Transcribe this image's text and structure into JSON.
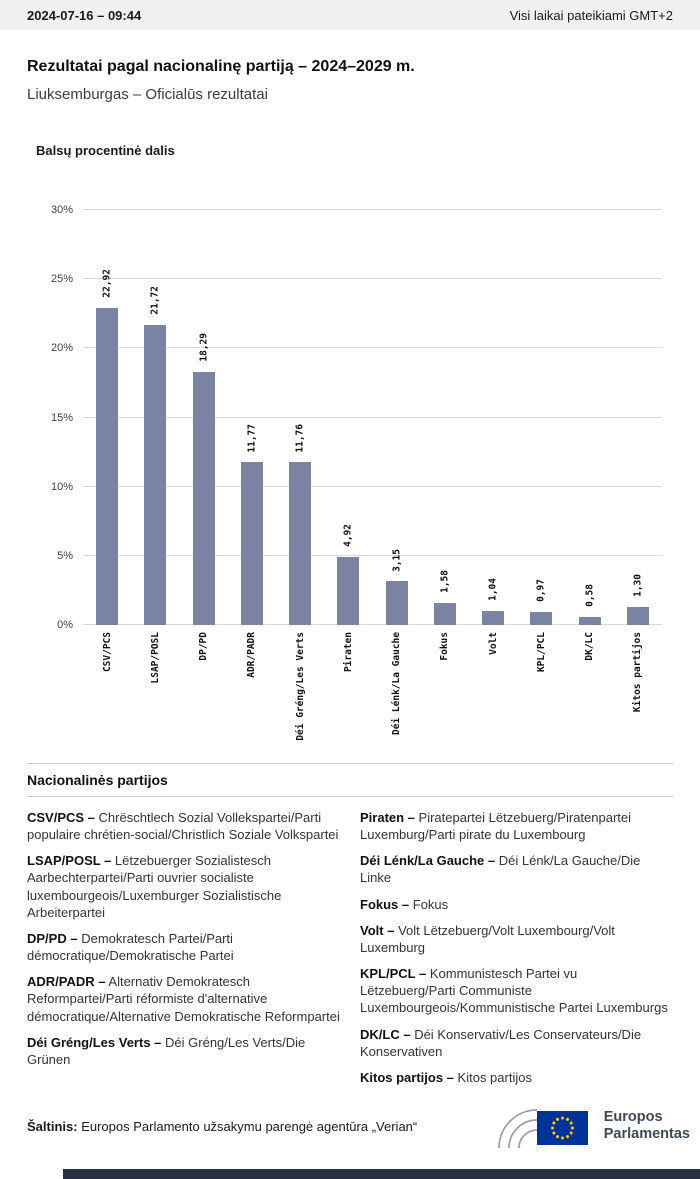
{
  "topbar": {
    "datetime": "2024-07-16 – 09:44",
    "timezone": "Visi laikai pateikiami GMT+2"
  },
  "page": {
    "title": "Rezultatai pagal nacionalinę partiją – 2024–2029 m.",
    "subtitle": "Liuksemburgas – Oficialūs rezultatai"
  },
  "chart_data": {
    "type": "bar",
    "title": "Balsų procentinė dalis",
    "categories": [
      "CSV/PCS",
      "LSAP/POSL",
      "DP/PD",
      "ADR/PADR",
      "Déi Gréng/Les Verts",
      "Piraten",
      "Déi Lénk/La Gauche",
      "Fokus",
      "Volt",
      "KPL/PCL",
      "DK/LC",
      "Kitos partijos"
    ],
    "values": [
      22.92,
      21.72,
      18.29,
      11.77,
      11.76,
      4.92,
      3.15,
      1.58,
      1.04,
      0.97,
      0.58,
      1.3
    ],
    "value_labels": [
      "22,92",
      "21,72",
      "18,29",
      "11,77",
      "11,76",
      "4,92",
      "3,15",
      "1,58",
      "1,04",
      "0,97",
      "0,58",
      "1,30"
    ],
    "xlabel": "",
    "ylabel": "",
    "ylim": [
      0,
      30
    ],
    "ytick_step": 5,
    "ytick_labels": [
      "0%",
      "5%",
      "10%",
      "15%",
      "20%",
      "25%",
      "30%"
    ],
    "bar_color": "#7b83a4",
    "grid": true,
    "legend_position": "none"
  },
  "parties_section": {
    "heading": "Nacionalinės partijos",
    "left": [
      {
        "abbr": "CSV/PCS –",
        "name": "Chrëschtlech Sozial Vollekspartei/Parti populaire chrétien-social/Christlich Soziale Volkspartei"
      },
      {
        "abbr": "LSAP/POSL –",
        "name": "Lëtzebuerger Sozialistesch Aarbechterpartei/Parti ouvrier socialiste luxembourgeois/Luxemburger Sozialistische Arbeiterpartei"
      },
      {
        "abbr": "DP/PD –",
        "name": "Demokratesch Partei/Parti démocratique/Demokratische Partei"
      },
      {
        "abbr": "ADR/PADR –",
        "name": "Alternativ Demokratesch Reformpartei/Parti réformiste d'alternative démocratique/Alternative Demokratische Reformpartei"
      },
      {
        "abbr": "Déi Gréng/Les Verts –",
        "name": "Déi Gréng/Les Verts/Die Grünen"
      }
    ],
    "right": [
      {
        "abbr": "Piraten –",
        "name": "Piratepartei Lëtzebuerg/Piratenpartei Luxemburg/Parti pirate du Luxembourg"
      },
      {
        "abbr": "Déi Lénk/La Gauche –",
        "name": "Déi Lénk/La Gauche/Die Linke"
      },
      {
        "abbr": "Fokus –",
        "name": "Fokus"
      },
      {
        "abbr": "Volt –",
        "name": "Volt Lëtzebuerg/Volt Luxembourg/Volt Luxemburg"
      },
      {
        "abbr": "KPL/PCL –",
        "name": "Kommunistesch Partei vu Lëtzebuerg/Parti Communiste Luxembourgeois/Kommunistische Partei Luxemburgs"
      },
      {
        "abbr": "DK/LC –",
        "name": "Déi Konservativ/Les Conservateurs/Die Konservativen"
      },
      {
        "abbr": "Kitos partijos –",
        "name": "Kitos partijos"
      }
    ]
  },
  "footer": {
    "source_label": "Šaltinis:",
    "source_text": "Europos Parlamento užsakymu parengė agentūra „Verian“",
    "logo_line1": "Europos",
    "logo_line2": "Parlamentas"
  }
}
